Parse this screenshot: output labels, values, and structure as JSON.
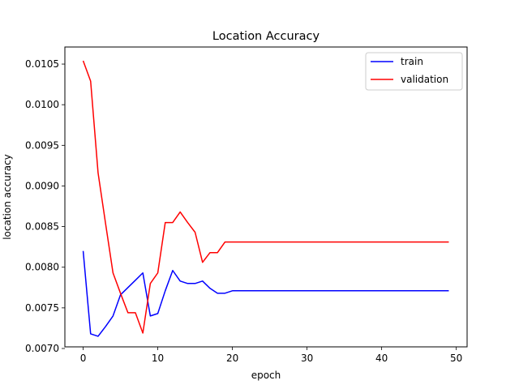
{
  "chart_data": {
    "type": "line",
    "title": "Location Accuracy",
    "xlabel": "epoch",
    "ylabel": "location accuracy",
    "xlim": [
      -2.45,
      51.45
    ],
    "ylim": [
      0.00702,
      0.01071
    ],
    "xticks": [
      0,
      10,
      20,
      30,
      40,
      50
    ],
    "xtick_labels": [
      "0",
      "10",
      "20",
      "30",
      "40",
      "50"
    ],
    "yticks": [
      0.007,
      0.0075,
      0.008,
      0.0085,
      0.009,
      0.0095,
      0.01,
      0.0105
    ],
    "ytick_labels": [
      "0.0070",
      "0.0075",
      "0.0080",
      "0.0085",
      "0.0090",
      "0.0095",
      "0.0100",
      "0.0105"
    ],
    "legend": "top-right",
    "grid": false,
    "series": [
      {
        "name": "train",
        "color": "#0000ff",
        "x": [
          0,
          1,
          2,
          3,
          4,
          5,
          6,
          7,
          8,
          9,
          10,
          11,
          12,
          13,
          14,
          15,
          16,
          17,
          18,
          19,
          20,
          21,
          22,
          23,
          24,
          25,
          26,
          27,
          28,
          29,
          30,
          31,
          32,
          33,
          34,
          35,
          36,
          37,
          38,
          39,
          40,
          41,
          42,
          43,
          44,
          45,
          46,
          47,
          48,
          49
        ],
        "values": [
          0.0082,
          0.00718,
          0.00715,
          0.00727,
          0.0074,
          0.00766,
          0.00775,
          0.00784,
          0.00793,
          0.0074,
          0.00743,
          0.00771,
          0.00796,
          0.00783,
          0.0078,
          0.0078,
          0.00783,
          0.00774,
          0.00768,
          0.00768,
          0.00771,
          0.00771,
          0.00771,
          0.00771,
          0.00771,
          0.00771,
          0.00771,
          0.00771,
          0.00771,
          0.00771,
          0.00771,
          0.00771,
          0.00771,
          0.00771,
          0.00771,
          0.00771,
          0.00771,
          0.00771,
          0.00771,
          0.00771,
          0.00771,
          0.00771,
          0.00771,
          0.00771,
          0.00771,
          0.00771,
          0.00771,
          0.00771,
          0.00771,
          0.00771
        ]
      },
      {
        "name": "validation",
        "color": "#ff0000",
        "x": [
          0,
          1,
          2,
          3,
          4,
          5,
          6,
          7,
          8,
          9,
          10,
          11,
          12,
          13,
          14,
          15,
          16,
          17,
          18,
          19,
          20,
          21,
          22,
          23,
          24,
          25,
          26,
          27,
          28,
          29,
          30,
          31,
          32,
          33,
          34,
          35,
          36,
          37,
          38,
          39,
          40,
          41,
          42,
          43,
          44,
          45,
          46,
          47,
          48,
          49
        ],
        "values": [
          0.01054,
          0.01029,
          0.00916,
          0.00854,
          0.00793,
          0.00768,
          0.00744,
          0.00744,
          0.00719,
          0.0078,
          0.00793,
          0.00855,
          0.00855,
          0.00868,
          0.00855,
          0.00843,
          0.00806,
          0.00818,
          0.00818,
          0.00831,
          0.00831,
          0.00831,
          0.00831,
          0.00831,
          0.00831,
          0.00831,
          0.00831,
          0.00831,
          0.00831,
          0.00831,
          0.00831,
          0.00831,
          0.00831,
          0.00831,
          0.00831,
          0.00831,
          0.00831,
          0.00831,
          0.00831,
          0.00831,
          0.00831,
          0.00831,
          0.00831,
          0.00831,
          0.00831,
          0.00831,
          0.00831,
          0.00831,
          0.00831,
          0.00831
        ]
      }
    ]
  }
}
